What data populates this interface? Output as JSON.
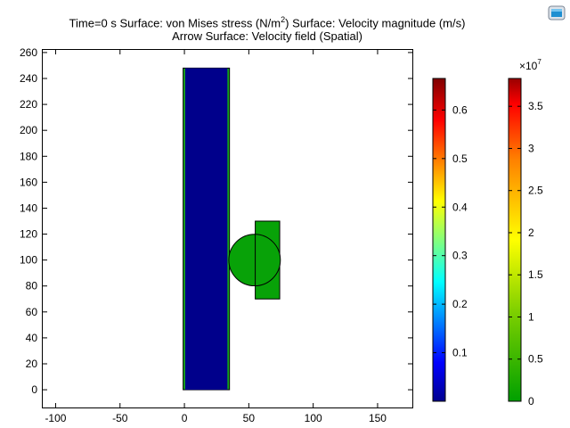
{
  "title": {
    "line1_prefix": "Time=0 s   Surface: von Mises stress (N/m",
    "line1_sup": "2",
    "line1_suffix": ")  Surface: Velocity magnitude (m/s)",
    "line2": "Arrow Surface: Velocity field (Spatial)"
  },
  "toolbar": {
    "icon": "view-icon"
  },
  "chart_data": {
    "type": "surface-plot",
    "xlim": [
      -110,
      177
    ],
    "ylim": [
      -13,
      262
    ],
    "x_ticks": [
      "-100",
      "-50",
      "0",
      "50",
      "100",
      "150"
    ],
    "y_ticks": [
      "0",
      "20",
      "40",
      "60",
      "80",
      "100",
      "120",
      "140",
      "160",
      "180",
      "200",
      "220",
      "240",
      "260"
    ],
    "x_tick_values": [
      -100,
      -50,
      0,
      50,
      100,
      150
    ],
    "y_tick_values": [
      0,
      20,
      40,
      60,
      80,
      100,
      120,
      140,
      160,
      180,
      200,
      220,
      240,
      260
    ],
    "bar_outer": {
      "x0": -1,
      "x1": 35,
      "y0": 0,
      "y1": 248,
      "color": "#17a81a"
    },
    "bar_inner": {
      "x0": 0.6,
      "x1": 33.4,
      "y0": 0,
      "y1": 248,
      "color": "#00008b"
    },
    "block": {
      "x0": 55,
      "x1": 74,
      "y0": 70,
      "y1": 130,
      "color": "#08a208"
    },
    "disk": {
      "cx": 54.5,
      "cy": 100,
      "r": 20,
      "color": "#08a208"
    },
    "colorbar_velocity": {
      "ticks": [
        "0.1",
        "0.2",
        "0.3",
        "0.4",
        "0.5",
        "0.6"
      ],
      "tick_values": [
        0.1,
        0.2,
        0.3,
        0.4,
        0.5,
        0.6
      ],
      "min": 0.0,
      "max": 0.665
    },
    "colorbar_stress": {
      "multiplier": "×10",
      "exponent": "7",
      "ticks": [
        "0",
        "0.5",
        "1",
        "1.5",
        "2",
        "2.5",
        "3",
        "3.5"
      ],
      "tick_values": [
        0,
        0.5,
        1,
        1.5,
        2,
        2.5,
        3,
        3.5
      ],
      "min": 0.0,
      "max": 3.83
    }
  }
}
